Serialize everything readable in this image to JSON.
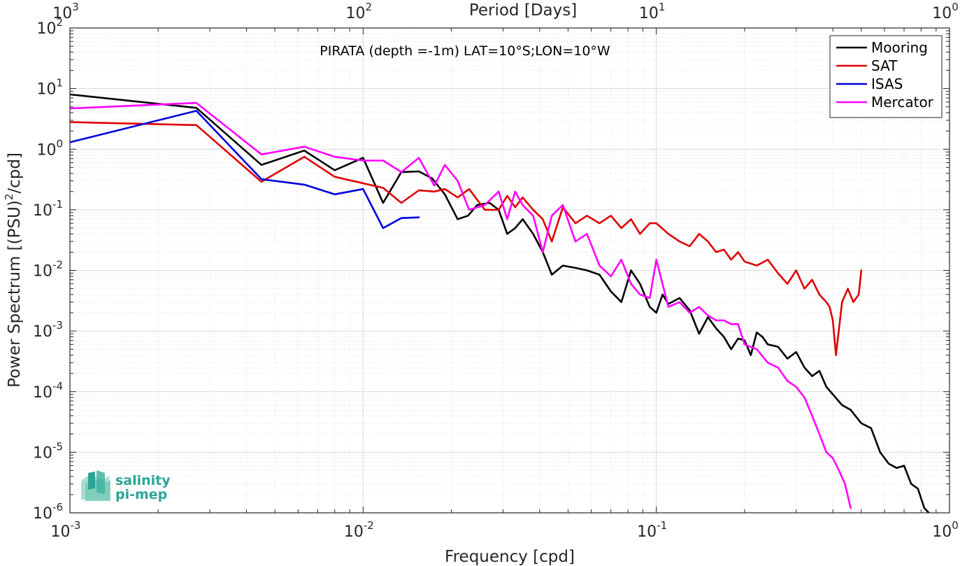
{
  "chart_data": {
    "type": "line",
    "title": "PIRATA (depth =-1m) LAT=10°S;LON=10°W",
    "xlabel": "Frequency [cpd]",
    "ylabel": "Power Spectrum [(PSU)²/cpd]",
    "ylabel_base": "Power Spectrum [(PSU)",
    "ylabel_sup": "2",
    "ylabel_tail": "/cpd]",
    "x2label": "Period [Days]",
    "xscale": "log",
    "yscale": "log",
    "xlim": [
      0.001,
      1
    ],
    "ylim": [
      1e-06,
      100
    ],
    "grid": true,
    "legend_position": "top-right",
    "x_ticks": [
      {
        "value": 0.001,
        "base": "10",
        "exp": "-3"
      },
      {
        "value": 0.01,
        "base": "10",
        "exp": "-2"
      },
      {
        "value": 0.1,
        "base": "10",
        "exp": "-1"
      },
      {
        "value": 1,
        "base": "10",
        "exp": "0"
      }
    ],
    "y_ticks": [
      {
        "value": 1e-06,
        "base": "10",
        "exp": "-6"
      },
      {
        "value": 1e-05,
        "base": "10",
        "exp": "-5"
      },
      {
        "value": 0.0001,
        "base": "10",
        "exp": "-4"
      },
      {
        "value": 0.001,
        "base": "10",
        "exp": "-3"
      },
      {
        "value": 0.01,
        "base": "10",
        "exp": "-2"
      },
      {
        "value": 0.1,
        "base": "10",
        "exp": "-1"
      },
      {
        "value": 1,
        "base": "10",
        "exp": "0"
      },
      {
        "value": 10,
        "base": "10",
        "exp": "1"
      },
      {
        "value": 100,
        "base": "10",
        "exp": "2"
      }
    ],
    "top_ticks": [
      {
        "value": 0.001,
        "base": "10",
        "exp": "3"
      },
      {
        "value": 0.01,
        "base": "10",
        "exp": "2"
      },
      {
        "value": 0.1,
        "base": "10",
        "exp": "1"
      },
      {
        "value": 1,
        "base": "10",
        "exp": "0"
      }
    ],
    "series": [
      {
        "name": "Mooring",
        "color": "#000000",
        "x": [
          0.001,
          0.0027,
          0.0045,
          0.0063,
          0.008,
          0.01,
          0.0117,
          0.0135,
          0.0155,
          0.0172,
          0.019,
          0.021,
          0.0228,
          0.0245,
          0.027,
          0.029,
          0.031,
          0.033,
          0.035,
          0.038,
          0.041,
          0.044,
          0.048,
          0.053,
          0.058,
          0.064,
          0.07,
          0.076,
          0.082,
          0.088,
          0.095,
          0.1,
          0.105,
          0.11,
          0.12,
          0.13,
          0.14,
          0.15,
          0.16,
          0.17,
          0.18,
          0.19,
          0.2,
          0.21,
          0.22,
          0.23,
          0.24,
          0.26,
          0.28,
          0.3,
          0.32,
          0.34,
          0.36,
          0.38,
          0.4,
          0.43,
          0.46,
          0.5,
          0.54,
          0.58,
          0.62,
          0.66,
          0.7,
          0.74,
          0.78,
          0.82,
          0.85
        ],
        "y": [
          8.0,
          4.8,
          0.55,
          0.95,
          0.45,
          0.72,
          0.13,
          0.42,
          0.43,
          0.33,
          0.18,
          0.07,
          0.08,
          0.12,
          0.13,
          0.1,
          0.04,
          0.05,
          0.07,
          0.04,
          0.02,
          0.0085,
          0.012,
          0.011,
          0.01,
          0.0085,
          0.0045,
          0.003,
          0.01,
          0.006,
          0.0025,
          0.002,
          0.004,
          0.0028,
          0.0035,
          0.0022,
          0.0009,
          0.0017,
          0.0011,
          0.0008,
          0.0005,
          0.00075,
          0.0007,
          0.0004,
          0.00095,
          0.0008,
          0.0006,
          0.00055,
          0.00035,
          0.00045,
          0.00025,
          0.00018,
          0.00022,
          0.00012,
          9e-05,
          6e-05,
          5e-05,
          3e-05,
          2.5e-05,
          1e-05,
          6.5e-06,
          5.5e-06,
          6e-06,
          3e-06,
          2.5e-06,
          1.2e-06,
          1e-06
        ]
      },
      {
        "name": "SAT",
        "color": "#e00000",
        "x": [
          0.001,
          0.0027,
          0.0045,
          0.0063,
          0.008,
          0.0117,
          0.0135,
          0.0155,
          0.0175,
          0.019,
          0.021,
          0.023,
          0.026,
          0.029,
          0.031,
          0.033,
          0.035,
          0.038,
          0.041,
          0.044,
          0.048,
          0.053,
          0.058,
          0.064,
          0.07,
          0.076,
          0.082,
          0.088,
          0.095,
          0.1,
          0.11,
          0.12,
          0.13,
          0.14,
          0.15,
          0.16,
          0.17,
          0.18,
          0.19,
          0.2,
          0.22,
          0.24,
          0.26,
          0.28,
          0.3,
          0.32,
          0.34,
          0.36,
          0.38,
          0.39,
          0.4,
          0.41,
          0.43,
          0.45,
          0.47,
          0.49,
          0.5
        ],
        "y": [
          2.8,
          2.5,
          0.29,
          0.75,
          0.35,
          0.23,
          0.13,
          0.21,
          0.2,
          0.22,
          0.16,
          0.22,
          0.1,
          0.1,
          0.17,
          0.11,
          0.16,
          0.1,
          0.07,
          0.03,
          0.11,
          0.06,
          0.08,
          0.06,
          0.08,
          0.05,
          0.07,
          0.04,
          0.06,
          0.06,
          0.04,
          0.03,
          0.025,
          0.04,
          0.03,
          0.02,
          0.022,
          0.015,
          0.02,
          0.014,
          0.012,
          0.015,
          0.009,
          0.006,
          0.01,
          0.005,
          0.007,
          0.004,
          0.003,
          0.0025,
          0.0015,
          0.0004,
          0.003,
          0.005,
          0.003,
          0.004,
          0.01
        ]
      },
      {
        "name": "ISAS",
        "color": "#0000dd",
        "x": [
          0.001,
          0.0027,
          0.0045,
          0.0063,
          0.008,
          0.01,
          0.0117,
          0.0135,
          0.0155
        ],
        "y": [
          1.3,
          4.3,
          0.32,
          0.26,
          0.18,
          0.22,
          0.05,
          0.073,
          0.075
        ]
      },
      {
        "name": "Mercator",
        "color": "#ff00ff",
        "x": [
          0.001,
          0.0027,
          0.0045,
          0.0063,
          0.008,
          0.01,
          0.0117,
          0.0135,
          0.0155,
          0.0175,
          0.019,
          0.021,
          0.023,
          0.026,
          0.029,
          0.031,
          0.033,
          0.035,
          0.038,
          0.041,
          0.044,
          0.048,
          0.053,
          0.058,
          0.064,
          0.07,
          0.076,
          0.082,
          0.088,
          0.095,
          0.1,
          0.11,
          0.12,
          0.13,
          0.14,
          0.15,
          0.16,
          0.17,
          0.18,
          0.19,
          0.2,
          0.22,
          0.24,
          0.26,
          0.28,
          0.3,
          0.32,
          0.34,
          0.36,
          0.38,
          0.4,
          0.42,
          0.44,
          0.46
        ],
        "y": [
          4.7,
          5.8,
          0.82,
          1.1,
          0.75,
          0.65,
          0.65,
          0.42,
          0.72,
          0.25,
          0.55,
          0.3,
          0.1,
          0.12,
          0.2,
          0.07,
          0.2,
          0.12,
          0.08,
          0.02,
          0.08,
          0.12,
          0.03,
          0.04,
          0.012,
          0.008,
          0.015,
          0.006,
          0.004,
          0.0035,
          0.015,
          0.0025,
          0.003,
          0.002,
          0.0025,
          0.0018,
          0.0015,
          0.0015,
          0.0013,
          0.0013,
          0.0006,
          0.0005,
          0.0003,
          0.00025,
          0.00015,
          0.00012,
          8e-05,
          4e-05,
          2e-05,
          1e-05,
          8e-06,
          5e-06,
          3e-06,
          1.2e-06
        ]
      }
    ]
  },
  "logo": {
    "line1": "salinity",
    "line2": "pi-mep"
  }
}
